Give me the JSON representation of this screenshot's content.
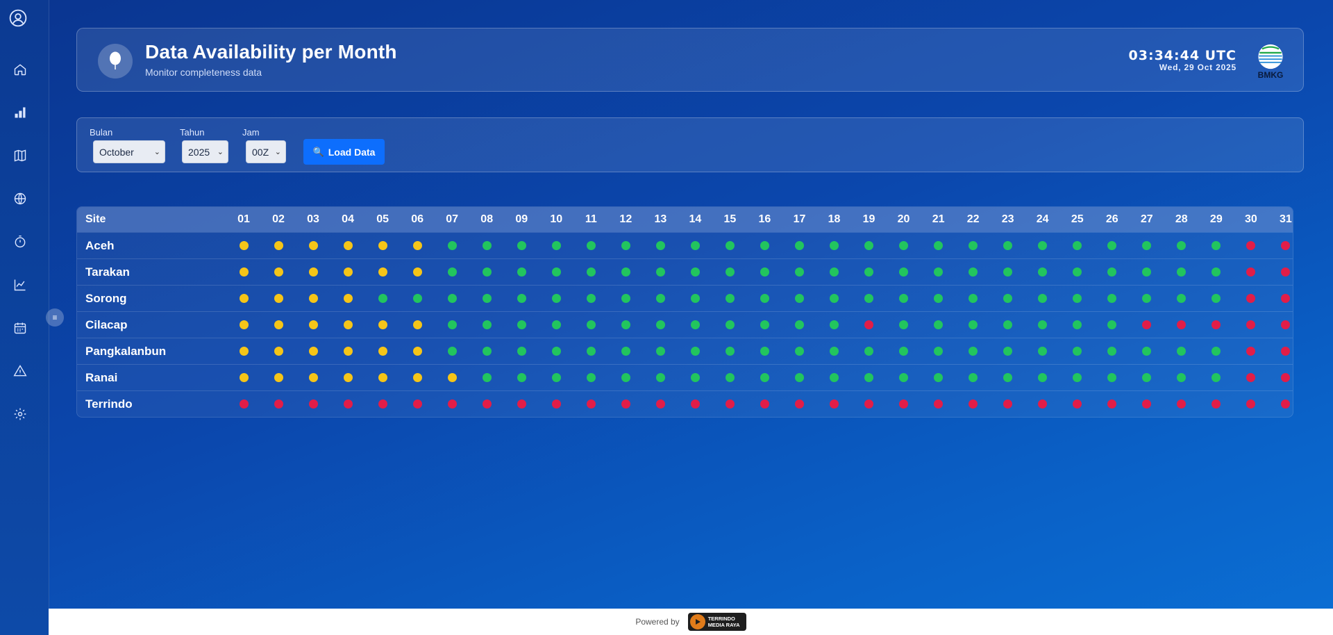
{
  "header": {
    "title": "Data Availability per Month",
    "subtitle": "Monitor completeness data",
    "clock_time": "03:34:44 UTC",
    "clock_date": "Wed, 29 Oct 2025",
    "logo_text": "BMKG"
  },
  "sidebar": {
    "items": [
      {
        "icon": "user-icon"
      },
      {
        "icon": "home-icon"
      },
      {
        "icon": "bar-chart-icon"
      },
      {
        "icon": "map-icon"
      },
      {
        "icon": "globe-icon"
      },
      {
        "icon": "timer-icon"
      },
      {
        "icon": "line-chart-icon"
      },
      {
        "icon": "calendar-icon"
      },
      {
        "icon": "warning-icon"
      },
      {
        "icon": "gear-icon"
      }
    ],
    "toggle_label": "≡"
  },
  "filters": {
    "month_label": "Bulan",
    "month_value": "October",
    "year_label": "Tahun",
    "year_value": "2025",
    "hour_label": "Jam",
    "hour_value": "00Z",
    "load_button": "Load Data"
  },
  "table": {
    "site_header": "Site",
    "days": [
      "01",
      "02",
      "03",
      "04",
      "05",
      "06",
      "07",
      "08",
      "09",
      "10",
      "11",
      "12",
      "13",
      "14",
      "15",
      "16",
      "17",
      "18",
      "19",
      "20",
      "21",
      "22",
      "23",
      "24",
      "25",
      "26",
      "27",
      "28",
      "29",
      "30",
      "31"
    ],
    "rows": [
      {
        "site": "Aceh",
        "status": "YYYYYYGGGGGGGGGGGGGGGGGGGGGGGRR"
      },
      {
        "site": "Tarakan",
        "status": "YYYYYYGGGGGGGGGGGGGGGGGGGGGGGRR"
      },
      {
        "site": "Sorong",
        "status": "YYYYGGGGGGGGGGGGGGGGGGGGGGGGGRR"
      },
      {
        "site": "Cilacap",
        "status": "YYYYYYGGGGGGGGGGGGRGGGGGGGRRRRR"
      },
      {
        "site": "Pangkalanbun",
        "status": "YYYYYYGGGGGGGGGGGGGGGGGGGGGGGRR"
      },
      {
        "site": "Ranai",
        "status": "YYYYYYYGGGGGGGGGGGGGGGGGGGGGGRR"
      },
      {
        "site": "Terrindo",
        "status": "RRRRRRRRRRRRRRRRRRRRRRRRRRRRRRR"
      }
    ],
    "status_colors": {
      "Y": "#f5c518",
      "G": "#22c55e",
      "R": "#e11d48"
    }
  },
  "footer": {
    "powered_by": "Powered by",
    "brand_line1": "TERRINDO",
    "brand_line2": "MEDIA RAYA"
  }
}
